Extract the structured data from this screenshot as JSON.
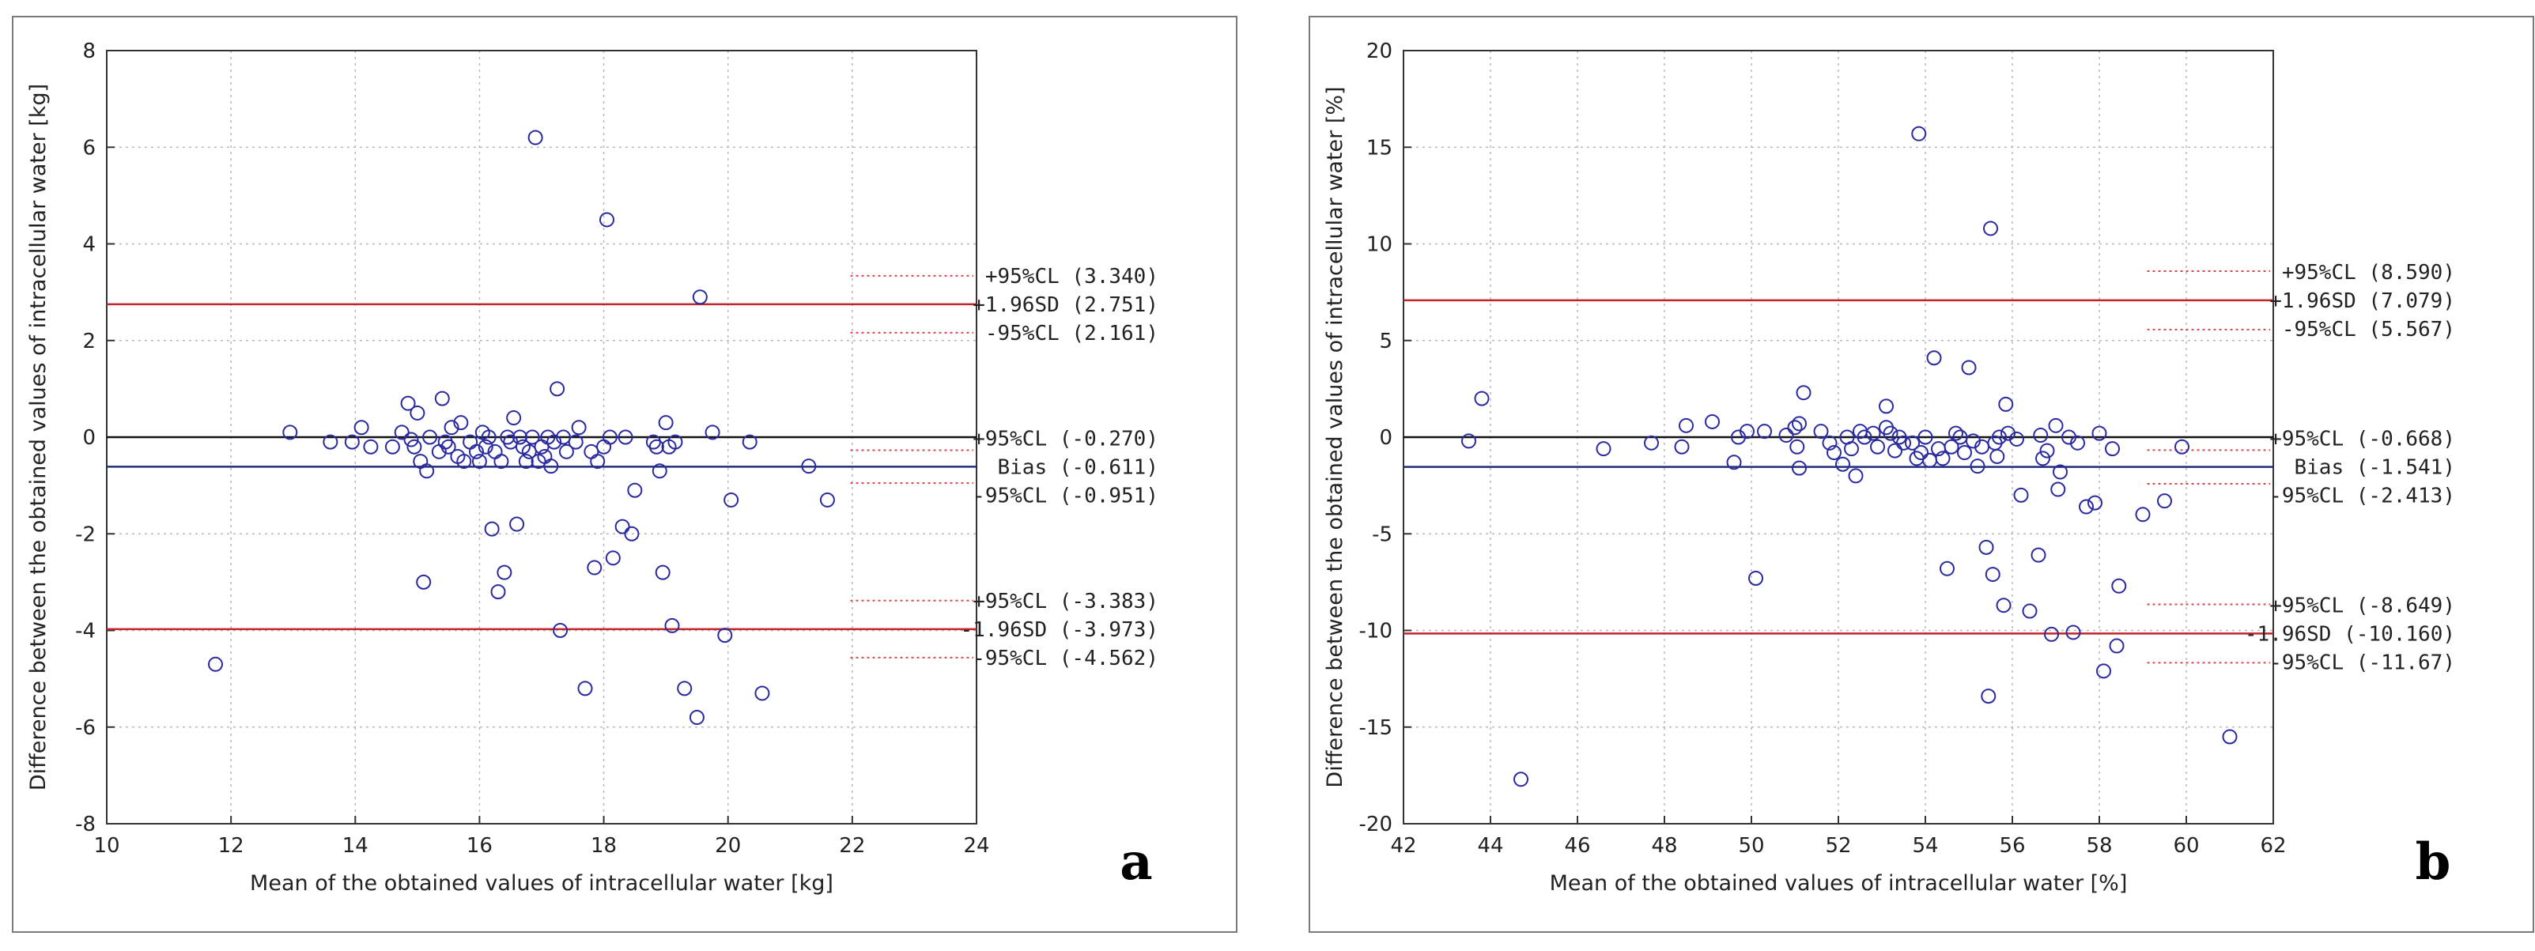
{
  "chart_data": [
    {
      "type": "scatter",
      "panel_label": "a",
      "xlabel": "Mean of the obtained values of intracellular water [kg]",
      "ylabel": "Difference between the obtained values of intracellular water [kg]",
      "xlim": [
        10,
        24
      ],
      "ylim": [
        -8,
        8
      ],
      "xticks": [
        "10",
        "12",
        "14",
        "16",
        "18",
        "20",
        "22",
        "24"
      ],
      "yticks": [
        "-8",
        "-6",
        "-4",
        "-2",
        "0",
        "2",
        "4",
        "6",
        "8"
      ],
      "lines": {
        "upper_loa": 2.751,
        "upper_loa_ci_high": 3.34,
        "upper_loa_ci_low": 2.161,
        "bias": -0.611,
        "bias_ci_high": -0.27,
        "bias_ci_low": -0.951,
        "lower_loa": -3.973,
        "lower_loa_ci_high": -3.383,
        "lower_loa_ci_low": -4.562
      },
      "annotations": {
        "upper": [
          "+95%CL (3.340)",
          "+1.96SD (2.751)",
          "-95%CL (2.161)"
        ],
        "bias": [
          "+95%CL (-0.270)",
          "Bias (-0.611)",
          "-95%CL (-0.951)"
        ],
        "lower": [
          "+95%CL (-3.383)",
          "-1.96SD (-3.973)",
          "-95%CL (-4.562)"
        ]
      },
      "points": [
        [
          11.75,
          -4.7
        ],
        [
          12.95,
          0.1
        ],
        [
          13.6,
          -0.1
        ],
        [
          13.95,
          -0.1
        ],
        [
          14.1,
          0.2
        ],
        [
          14.25,
          -0.2
        ],
        [
          14.6,
          -0.2
        ],
        [
          14.75,
          0.1
        ],
        [
          14.85,
          0.7
        ],
        [
          14.9,
          -0.05
        ],
        [
          14.95,
          -0.2
        ],
        [
          15.0,
          0.5
        ],
        [
          15.05,
          -0.5
        ],
        [
          15.1,
          -3.0
        ],
        [
          15.15,
          -0.7
        ],
        [
          15.2,
          0.0
        ],
        [
          15.35,
          -0.3
        ],
        [
          15.4,
          0.8
        ],
        [
          15.45,
          -0.1
        ],
        [
          15.5,
          -0.2
        ],
        [
          15.55,
          0.2
        ],
        [
          15.65,
          -0.4
        ],
        [
          15.7,
          0.3
        ],
        [
          15.75,
          -0.5
        ],
        [
          15.85,
          -0.1
        ],
        [
          15.95,
          -0.3
        ],
        [
          16.0,
          -0.5
        ],
        [
          16.05,
          0.1
        ],
        [
          16.1,
          -0.2
        ],
        [
          16.15,
          0.0
        ],
        [
          16.2,
          -1.9
        ],
        [
          16.25,
          -0.3
        ],
        [
          16.3,
          -3.2
        ],
        [
          16.35,
          -0.5
        ],
        [
          16.4,
          -2.8
        ],
        [
          16.45,
          0.0
        ],
        [
          16.5,
          -0.1
        ],
        [
          16.55,
          0.4
        ],
        [
          16.6,
          -1.8
        ],
        [
          16.65,
          0.0
        ],
        [
          16.7,
          -0.2
        ],
        [
          16.75,
          -0.5
        ],
        [
          16.8,
          -0.3
        ],
        [
          16.85,
          0.0
        ],
        [
          16.9,
          6.2
        ],
        [
          16.95,
          -0.5
        ],
        [
          17.0,
          -0.2
        ],
        [
          17.05,
          -0.4
        ],
        [
          17.1,
          0.0
        ],
        [
          17.15,
          -0.6
        ],
        [
          17.2,
          -0.1
        ],
        [
          17.25,
          1.0
        ],
        [
          17.3,
          -4.0
        ],
        [
          17.35,
          0.0
        ],
        [
          17.4,
          -0.3
        ],
        [
          17.55,
          -0.1
        ],
        [
          17.6,
          0.2
        ],
        [
          17.7,
          -5.2
        ],
        [
          17.8,
          -0.3
        ],
        [
          17.85,
          -2.7
        ],
        [
          17.9,
          -0.5
        ],
        [
          18.0,
          -0.2
        ],
        [
          18.05,
          4.5
        ],
        [
          18.1,
          0.0
        ],
        [
          18.15,
          -2.5
        ],
        [
          18.3,
          -1.85
        ],
        [
          18.35,
          0.0
        ],
        [
          18.45,
          -2.0
        ],
        [
          18.5,
          -1.1
        ],
        [
          18.8,
          -0.1
        ],
        [
          18.85,
          -0.2
        ],
        [
          18.9,
          -0.7
        ],
        [
          18.95,
          -2.8
        ],
        [
          19.0,
          0.3
        ],
        [
          19.05,
          -0.2
        ],
        [
          19.1,
          -3.9
        ],
        [
          19.15,
          -0.1
        ],
        [
          19.3,
          -5.2
        ],
        [
          19.5,
          -5.8
        ],
        [
          19.55,
          2.9
        ],
        [
          19.75,
          0.1
        ],
        [
          19.95,
          -4.1
        ],
        [
          20.05,
          -1.3
        ],
        [
          20.35,
          -0.1
        ],
        [
          20.55,
          -5.3
        ],
        [
          21.3,
          -0.6
        ],
        [
          21.6,
          -1.3
        ]
      ]
    },
    {
      "type": "scatter",
      "panel_label": "b",
      "xlabel": "Mean of the obtained values of intracellular water [%]",
      "ylabel": "Difference between the obtained values of intracellular water [%]",
      "xlim": [
        42,
        62
      ],
      "ylim": [
        -20,
        20
      ],
      "xticks": [
        "42",
        "44",
        "46",
        "48",
        "50",
        "52",
        "54",
        "56",
        "58",
        "60",
        "62"
      ],
      "yticks": [
        "-20",
        "-15",
        "-10",
        "-5",
        "0",
        "5",
        "10",
        "15",
        "20"
      ],
      "lines": {
        "upper_loa": 7.079,
        "upper_loa_ci_high": 8.59,
        "upper_loa_ci_low": 5.567,
        "bias": -1.541,
        "bias_ci_high": -0.668,
        "bias_ci_low": -2.413,
        "lower_loa": -10.16,
        "lower_loa_ci_high": -8.649,
        "lower_loa_ci_low": -11.67
      },
      "annotations": {
        "upper": [
          "+95%CL (8.590)",
          "+1.96SD (7.079)",
          "-95%CL (5.567)"
        ],
        "bias": [
          "+95%CL (-0.668)",
          "Bias (-1.541)",
          "-95%CL (-2.413)"
        ],
        "lower": [
          "+95%CL (-8.649)",
          "-1.96SD (-10.160)",
          "-95%CL (-11.67)"
        ]
      },
      "points": [
        [
          43.5,
          -0.2
        ],
        [
          43.8,
          2.0
        ],
        [
          44.7,
          -17.7
        ],
        [
          46.6,
          -0.6
        ],
        [
          47.7,
          -0.3
        ],
        [
          48.4,
          -0.5
        ],
        [
          48.5,
          0.6
        ],
        [
          49.1,
          0.8
        ],
        [
          49.6,
          -1.3
        ],
        [
          49.7,
          0.0
        ],
        [
          49.9,
          0.3
        ],
        [
          50.1,
          -7.3
        ],
        [
          50.3,
          0.3
        ],
        [
          50.8,
          0.1
        ],
        [
          51.0,
          0.5
        ],
        [
          51.05,
          -0.5
        ],
        [
          51.1,
          -1.6
        ],
        [
          51.1,
          0.7
        ],
        [
          51.2,
          2.3
        ],
        [
          51.6,
          0.3
        ],
        [
          51.8,
          -0.3
        ],
        [
          51.9,
          -0.8
        ],
        [
          52.1,
          -1.4
        ],
        [
          52.2,
          0.0
        ],
        [
          52.3,
          -0.6
        ],
        [
          52.4,
          -2.0
        ],
        [
          52.5,
          0.3
        ],
        [
          52.6,
          0.0
        ],
        [
          52.8,
          0.2
        ],
        [
          52.9,
          -0.5
        ],
        [
          53.1,
          1.6
        ],
        [
          53.1,
          0.5
        ],
        [
          53.2,
          0.2
        ],
        [
          53.3,
          -0.7
        ],
        [
          53.4,
          0.0
        ],
        [
          53.5,
          -0.3
        ],
        [
          53.7,
          -0.3
        ],
        [
          53.8,
          -1.1
        ],
        [
          53.85,
          15.7
        ],
        [
          53.9,
          -0.8
        ],
        [
          54.0,
          0.0
        ],
        [
          54.1,
          -1.2
        ],
        [
          54.2,
          4.1
        ],
        [
          54.3,
          -0.6
        ],
        [
          54.4,
          -1.1
        ],
        [
          54.5,
          -6.8
        ],
        [
          54.6,
          -0.5
        ],
        [
          54.7,
          0.2
        ],
        [
          54.8,
          0.0
        ],
        [
          54.9,
          -0.8
        ],
        [
          55.0,
          3.6
        ],
        [
          55.1,
          -0.2
        ],
        [
          55.2,
          -1.5
        ],
        [
          55.3,
          -0.5
        ],
        [
          55.4,
          -5.7
        ],
        [
          55.45,
          -13.4
        ],
        [
          55.5,
          10.8
        ],
        [
          55.55,
          -7.1
        ],
        [
          55.6,
          -0.3
        ],
        [
          55.65,
          -1.0
        ],
        [
          55.7,
          0.0
        ],
        [
          55.8,
          -8.7
        ],
        [
          55.85,
          1.7
        ],
        [
          55.9,
          0.2
        ],
        [
          56.1,
          -0.1
        ],
        [
          56.2,
          -3.0
        ],
        [
          56.4,
          -9.0
        ],
        [
          56.6,
          -6.1
        ],
        [
          56.65,
          0.1
        ],
        [
          56.7,
          -1.1
        ],
        [
          56.8,
          -0.7
        ],
        [
          56.9,
          -10.2
        ],
        [
          57.0,
          0.6
        ],
        [
          57.05,
          -2.7
        ],
        [
          57.1,
          -1.8
        ],
        [
          57.3,
          0.0
        ],
        [
          57.4,
          -10.1
        ],
        [
          57.5,
          -0.3
        ],
        [
          57.7,
          -3.6
        ],
        [
          57.9,
          -3.4
        ],
        [
          58.0,
          0.2
        ],
        [
          58.1,
          -12.1
        ],
        [
          58.3,
          -0.6
        ],
        [
          58.4,
          -10.8
        ],
        [
          58.45,
          -7.7
        ],
        [
          59.0,
          -4.0
        ],
        [
          59.5,
          -3.3
        ],
        [
          59.9,
          -0.5
        ],
        [
          61.0,
          -15.5
        ]
      ]
    }
  ],
  "colors": {
    "loa_line": "#c0232a",
    "bias_line": "#1f2d78",
    "zero_line": "#111111",
    "ci_dotted": "#d04a50",
    "marker": "#2a2aa0",
    "grid": "#b8b8b8"
  }
}
